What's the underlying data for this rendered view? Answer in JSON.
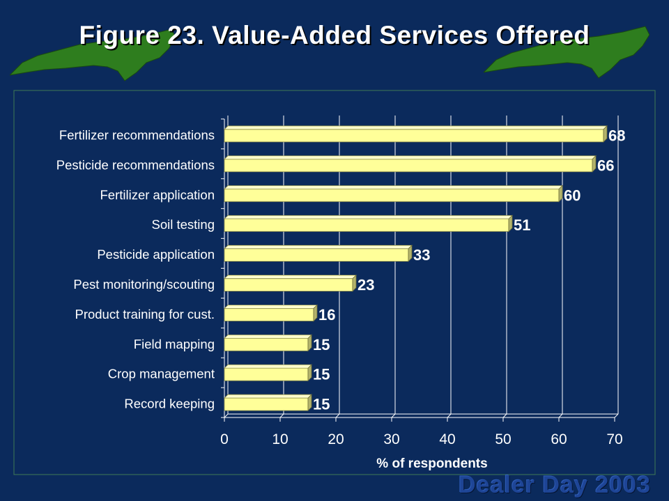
{
  "slide": {
    "title": "Figure 23. Value-Added Services Offered",
    "footer": "Dealer Day 2003"
  },
  "colors": {
    "background": "#0b2a5c",
    "bar_face": "#ffff99",
    "bar_top": "#ffffcc",
    "bar_side": "#b3b36b",
    "map_green": "#2e7d1e"
  },
  "chart_data": {
    "type": "bar",
    "orientation": "horizontal",
    "style": "3d",
    "categories": [
      "Fertilizer recommendations",
      "Pesticide recommendations",
      "Fertilizer application",
      "Soil testing",
      "Pesticide application",
      "Pest monitoring/scouting",
      "Product training for cust.",
      "Field mapping",
      "Crop management",
      "Record keeping"
    ],
    "values": [
      68,
      66,
      60,
      51,
      33,
      23,
      16,
      15,
      15,
      15
    ],
    "value_labels": [
      "68",
      "66",
      "60",
      "51",
      "33",
      "23",
      "16",
      "15",
      "15",
      "15"
    ],
    "xlabel": "% of respondents",
    "xlim": [
      0,
      70
    ],
    "xticks": [
      0,
      10,
      20,
      30,
      40,
      50,
      60,
      70
    ],
    "xtick_labels": [
      "0",
      "10",
      "20",
      "30",
      "40",
      "50",
      "60",
      "70"
    ],
    "grid": "vertical",
    "legend": "none"
  }
}
